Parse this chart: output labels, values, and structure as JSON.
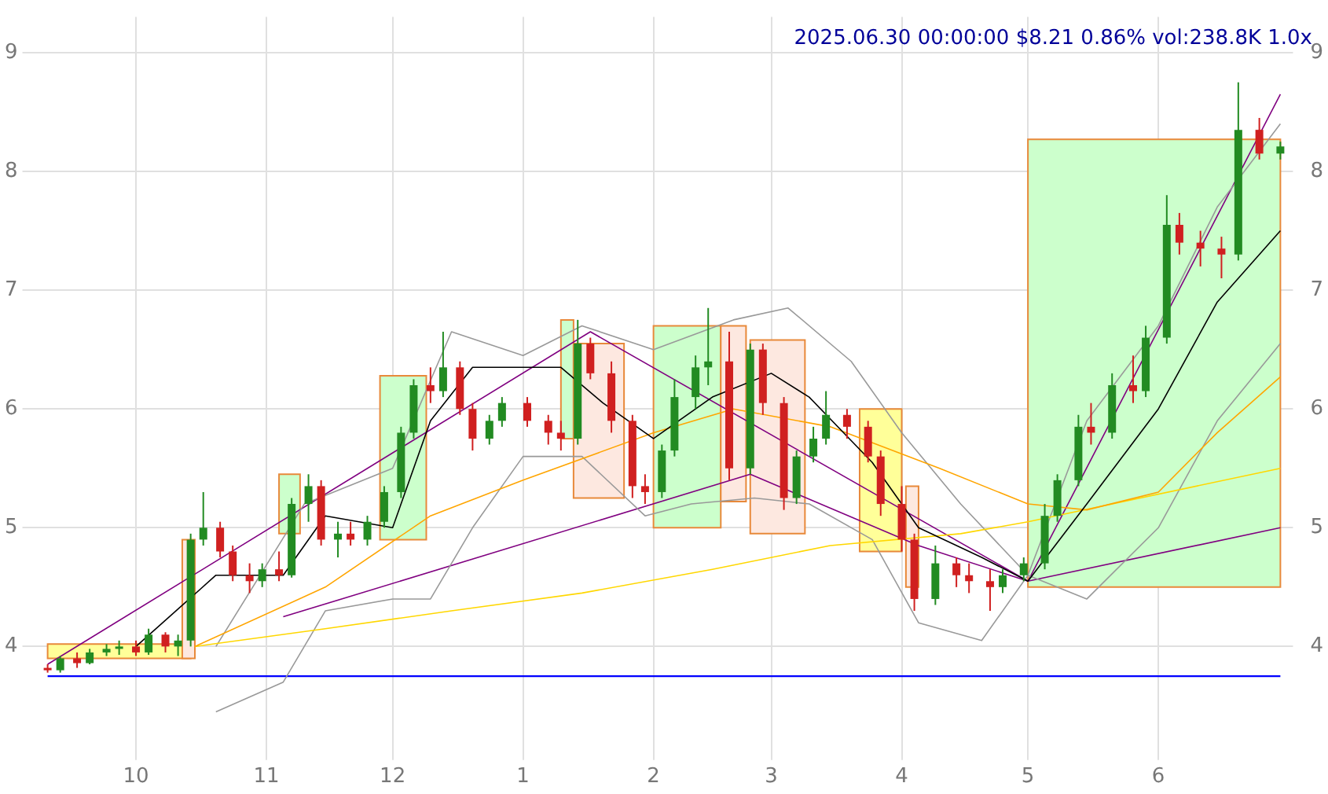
{
  "chart_data": {
    "type": "candlestick",
    "title": "2025.06.30 00:00:00 $8.21 0.86% vol:238.8K 1.0x",
    "x": [
      "2024-09-10",
      "2024-09-13",
      "2024-09-17",
      "2024-09-20",
      "2024-09-24",
      "2024-09-27",
      "2024-10-01",
      "2024-10-04",
      "2024-10-08",
      "2024-10-11",
      "2024-10-14",
      "2024-10-17",
      "2024-10-21",
      "2024-10-24",
      "2024-10-28",
      "2024-10-31",
      "2024-11-04",
      "2024-11-07",
      "2024-11-11",
      "2024-11-14",
      "2024-11-18",
      "2024-11-21",
      "2024-11-25",
      "2024-11-29",
      "2024-12-03",
      "2024-12-06",
      "2024-12-10",
      "2024-12-13",
      "2024-12-17",
      "2024-12-20",
      "2024-12-24",
      "2024-12-27",
      "2025-01-02",
      "2025-01-07",
      "2025-01-10",
      "2025-01-14",
      "2025-01-17",
      "2025-01-22",
      "2025-01-27",
      "2025-01-30",
      "2025-02-03",
      "2025-02-06",
      "2025-02-11",
      "2025-02-14",
      "2025-02-19",
      "2025-02-24",
      "2025-02-27",
      "2025-03-04",
      "2025-03-07",
      "2025-03-11",
      "2025-03-14",
      "2025-03-19",
      "2025-03-24",
      "2025-03-27",
      "2025-04-01",
      "2025-04-04",
      "2025-04-09",
      "2025-04-14",
      "2025-04-17",
      "2025-04-22",
      "2025-04-25",
      "2025-04-30",
      "2025-05-05",
      "2025-05-08",
      "2025-05-13",
      "2025-05-16",
      "2025-05-21",
      "2025-05-26",
      "2025-05-29",
      "2025-06-03",
      "2025-06-06",
      "2025-06-11",
      "2025-06-16",
      "2025-06-20",
      "2025-06-25",
      "2025-06-30"
    ],
    "ohlc": [
      [
        3.82,
        3.85,
        3.78,
        3.8
      ],
      [
        3.8,
        3.92,
        3.78,
        3.9
      ],
      [
        3.9,
        3.95,
        3.82,
        3.86
      ],
      [
        3.86,
        3.98,
        3.85,
        3.95
      ],
      [
        3.95,
        4.02,
        3.92,
        3.98
      ],
      [
        3.98,
        4.05,
        3.93,
        4.0
      ],
      [
        4.0,
        4.05,
        3.92,
        3.95
      ],
      [
        3.95,
        4.15,
        3.93,
        4.1
      ],
      [
        4.1,
        4.12,
        3.95,
        4.0
      ],
      [
        4.0,
        4.1,
        3.92,
        4.05
      ],
      [
        4.05,
        4.95,
        4.0,
        4.9
      ],
      [
        4.9,
        5.3,
        4.85,
        5.0
      ],
      [
        5.0,
        5.05,
        4.75,
        4.8
      ],
      [
        4.8,
        4.85,
        4.55,
        4.6
      ],
      [
        4.6,
        4.7,
        4.45,
        4.55
      ],
      [
        4.55,
        4.7,
        4.5,
        4.65
      ],
      [
        4.65,
        4.8,
        4.55,
        4.6
      ],
      [
        4.6,
        5.25,
        4.58,
        5.2
      ],
      [
        5.2,
        5.45,
        5.05,
        5.35
      ],
      [
        5.35,
        5.4,
        4.85,
        4.9
      ],
      [
        4.9,
        5.05,
        4.75,
        4.95
      ],
      [
        4.95,
        5.05,
        4.85,
        4.9
      ],
      [
        4.9,
        5.1,
        4.85,
        5.05
      ],
      [
        5.05,
        5.35,
        5.0,
        5.3
      ],
      [
        5.3,
        5.85,
        5.25,
        5.8
      ],
      [
        5.8,
        6.25,
        5.75,
        6.2
      ],
      [
        6.2,
        6.35,
        6.05,
        6.15
      ],
      [
        6.15,
        6.65,
        6.1,
        6.35
      ],
      [
        6.35,
        6.4,
        5.95,
        6.0
      ],
      [
        6.0,
        6.05,
        5.65,
        5.75
      ],
      [
        5.75,
        5.95,
        5.7,
        5.9
      ],
      [
        5.9,
        6.1,
        5.85,
        6.05
      ],
      [
        6.05,
        6.1,
        5.85,
        5.9
      ],
      [
        5.9,
        5.95,
        5.7,
        5.8
      ],
      [
        5.8,
        5.9,
        5.65,
        5.75
      ],
      [
        5.75,
        6.75,
        5.7,
        6.55
      ],
      [
        6.55,
        6.6,
        6.25,
        6.3
      ],
      [
        6.3,
        6.4,
        5.8,
        5.9
      ],
      [
        5.9,
        5.95,
        5.25,
        5.35
      ],
      [
        5.35,
        5.45,
        5.2,
        5.3
      ],
      [
        5.3,
        5.7,
        5.25,
        5.65
      ],
      [
        5.65,
        6.25,
        5.6,
        6.1
      ],
      [
        6.1,
        6.45,
        6.0,
        6.35
      ],
      [
        6.35,
        6.85,
        6.2,
        6.4
      ],
      [
        6.4,
        6.65,
        5.4,
        5.5
      ],
      [
        5.5,
        6.55,
        5.45,
        6.5
      ],
      [
        6.5,
        6.55,
        5.95,
        6.05
      ],
      [
        6.05,
        6.1,
        5.15,
        5.25
      ],
      [
        5.25,
        5.65,
        5.2,
        5.6
      ],
      [
        5.6,
        5.85,
        5.55,
        5.75
      ],
      [
        5.75,
        6.15,
        5.7,
        5.95
      ],
      [
        5.95,
        6.0,
        5.75,
        5.85
      ],
      [
        5.85,
        5.9,
        5.55,
        5.6
      ],
      [
        5.6,
        5.65,
        5.1,
        5.2
      ],
      [
        5.2,
        5.35,
        4.8,
        4.9
      ],
      [
        4.9,
        4.95,
        4.3,
        4.4
      ],
      [
        4.4,
        4.85,
        4.35,
        4.7
      ],
      [
        4.7,
        4.75,
        4.5,
        4.6
      ],
      [
        4.6,
        4.7,
        4.45,
        4.55
      ],
      [
        4.55,
        4.65,
        4.3,
        4.5
      ],
      [
        4.5,
        4.65,
        4.45,
        4.6
      ],
      [
        4.6,
        4.75,
        4.55,
        4.7
      ],
      [
        4.7,
        5.2,
        4.65,
        5.1
      ],
      [
        5.1,
        5.45,
        5.05,
        5.4
      ],
      [
        5.4,
        5.95,
        5.35,
        5.85
      ],
      [
        5.85,
        6.05,
        5.7,
        5.8
      ],
      [
        5.8,
        6.3,
        5.75,
        6.2
      ],
      [
        6.2,
        6.45,
        6.05,
        6.15
      ],
      [
        6.15,
        6.7,
        6.1,
        6.6
      ],
      [
        6.6,
        7.8,
        6.55,
        7.55
      ],
      [
        7.55,
        7.65,
        7.3,
        7.4
      ],
      [
        7.4,
        7.5,
        7.2,
        7.35
      ],
      [
        7.35,
        7.45,
        7.1,
        7.3
      ],
      [
        7.3,
        8.75,
        7.25,
        8.35
      ],
      [
        8.35,
        8.45,
        8.1,
        8.15
      ],
      [
        8.15,
        8.25,
        8.1,
        8.21
      ]
    ],
    "series": [
      {
        "type": "area",
        "color": "#ffff99",
        "x": [
          "2024-09-10",
          "2024-10-14"
        ],
        "values": [
          null,
          null
        ],
        "lower": [
          3.9,
          3.9
        ],
        "upper": [
          4.02,
          4.02
        ]
      },
      {
        "type": "area",
        "color": "#fde8e0",
        "x": [
          "2024-10-12",
          "2024-10-15"
        ],
        "values": [
          null,
          null
        ],
        "lower": [
          3.9,
          3.9
        ],
        "upper": [
          4.9,
          4.9
        ]
      },
      {
        "type": "area",
        "color": "#ccffcc",
        "x": [
          "2024-11-04",
          "2024-11-09"
        ],
        "values": [
          null,
          null
        ],
        "lower": [
          4.95,
          4.95
        ],
        "upper": [
          5.45,
          5.45
        ]
      },
      {
        "type": "area",
        "color": "#ccffcc",
        "x": [
          "2024-11-28",
          "2024-12-09"
        ],
        "values": [
          null,
          null
        ],
        "lower": [
          4.9,
          4.9
        ],
        "upper": [
          6.28,
          6.28
        ]
      },
      {
        "type": "area",
        "color": "#ccffcc",
        "x": [
          "2025-01-10",
          "2025-01-13"
        ],
        "values": [
          null,
          null
        ],
        "lower": [
          5.75,
          5.75
        ],
        "upper": [
          6.75,
          6.75
        ]
      },
      {
        "type": "area",
        "color": "#fde8e0",
        "x": [
          "2025-01-13",
          "2025-01-25"
        ],
        "values": [
          null,
          null
        ],
        "lower": [
          5.25,
          5.25
        ],
        "upper": [
          6.55,
          6.55
        ]
      },
      {
        "type": "area",
        "color": "#ccffcc",
        "x": [
          "2025-02-01",
          "2025-02-17"
        ],
        "values": [
          null,
          null
        ],
        "lower": [
          5.0,
          5.0
        ],
        "upper": [
          6.7,
          6.7
        ]
      },
      {
        "type": "area",
        "color": "#fde8e0",
        "x": [
          "2025-02-17",
          "2025-02-23"
        ],
        "values": [
          null,
          null
        ],
        "lower": [
          5.22,
          5.22
        ],
        "upper": [
          6.7,
          6.7
        ]
      },
      {
        "type": "area",
        "color": "#fde8e0",
        "x": [
          "2025-02-24",
          "2025-03-09"
        ],
        "values": [
          null,
          null
        ],
        "lower": [
          4.95,
          4.95
        ],
        "upper": [
          6.58,
          6.58
        ]
      },
      {
        "type": "area",
        "color": "#ffff99",
        "x": [
          "2025-03-22",
          "2025-04-01"
        ],
        "values": [
          null,
          null
        ],
        "lower": [
          4.8,
          4.8
        ],
        "upper": [
          6.0,
          6.0
        ]
      },
      {
        "type": "area",
        "color": "#fde8e0",
        "x": [
          "2025-04-02",
          "2025-04-05"
        ],
        "values": [
          null,
          null
        ],
        "lower": [
          4.5,
          4.5
        ],
        "upper": [
          5.35,
          5.35
        ]
      },
      {
        "type": "area",
        "color": "#ccffcc",
        "x": [
          "2025-05-01",
          "2025-06-30"
        ],
        "values": [
          null,
          null
        ],
        "lower": [
          4.5,
          4.5
        ],
        "upper": [
          8.27,
          8.27
        ]
      },
      {
        "type": "line",
        "color": "#000000",
        "x": [
          "2024-10-01",
          "2024-10-20",
          "2024-11-05",
          "2024-11-15",
          "2024-12-01",
          "2024-12-10",
          "2024-12-20",
          "2025-01-10",
          "2025-01-20",
          "2025-02-01",
          "2025-02-15",
          "2025-03-01",
          "2025-03-10",
          "2025-03-25",
          "2025-04-05",
          "2025-04-20",
          "2025-05-01",
          "2025-05-15",
          "2025-06-01",
          "2025-06-15",
          "2025-06-30"
        ],
        "values": [
          4.0,
          4.6,
          4.6,
          5.1,
          5.0,
          5.9,
          6.35,
          6.35,
          6.05,
          5.75,
          6.1,
          6.3,
          6.1,
          5.55,
          5.0,
          4.75,
          4.55,
          5.2,
          6.0,
          6.9,
          7.5
        ]
      },
      {
        "type": "line",
        "color": "#ffa500",
        "x": [
          "2024-10-15",
          "2024-11-15",
          "2024-12-10",
          "2025-01-01",
          "2025-02-01",
          "2025-02-20",
          "2025-03-15",
          "2025-04-10",
          "2025-05-01",
          "2025-05-15",
          "2025-06-01",
          "2025-06-15",
          "2025-06-30"
        ],
        "values": [
          4.0,
          4.5,
          5.1,
          5.4,
          5.8,
          6.0,
          5.85,
          5.5,
          5.2,
          5.15,
          5.3,
          5.8,
          6.27
        ]
      },
      {
        "type": "line",
        "color": "#ffd700",
        "x": [
          "2024-10-15",
          "2024-11-15",
          "2024-12-15",
          "2025-01-15",
          "2025-02-15",
          "2025-03-15",
          "2025-04-15",
          "2025-05-01",
          "2025-06-30"
        ],
        "values": [
          4.0,
          4.15,
          4.3,
          4.45,
          4.65,
          4.85,
          4.95,
          5.05,
          5.5
        ]
      },
      {
        "type": "line",
        "color": "#999999",
        "x": [
          "2024-10-20",
          "2024-11-10",
          "2024-12-01",
          "2024-12-15",
          "2025-01-01",
          "2025-01-15",
          "2025-02-01",
          "2025-02-20",
          "2025-03-05",
          "2025-03-20",
          "2025-04-01",
          "2025-04-15",
          "2025-05-01",
          "2025-05-15",
          "2025-06-01",
          "2025-06-15",
          "2025-06-30"
        ],
        "values": [
          4.0,
          5.2,
          5.5,
          6.65,
          6.45,
          6.7,
          6.5,
          6.75,
          6.85,
          6.4,
          5.8,
          5.2,
          4.6,
          5.9,
          6.7,
          7.7,
          8.4
        ]
      },
      {
        "type": "line",
        "color": "#999999",
        "x": [
          "2024-10-20",
          "2024-11-05",
          "2024-11-15",
          "2024-12-01",
          "2024-12-10",
          "2024-12-20",
          "2025-01-01",
          "2025-01-15",
          "2025-01-30",
          "2025-02-10",
          "2025-02-25",
          "2025-03-10",
          "2025-03-25",
          "2025-04-05",
          "2025-04-20",
          "2025-05-01",
          "2025-05-15",
          "2025-06-01",
          "2025-06-15",
          "2025-06-30"
        ],
        "values": [
          3.45,
          3.7,
          4.3,
          4.4,
          4.4,
          5.0,
          5.6,
          5.6,
          5.1,
          5.2,
          5.25,
          5.2,
          4.9,
          4.2,
          4.05,
          4.6,
          4.4,
          5.0,
          5.9,
          6.55
        ]
      },
      {
        "type": "line",
        "color": "#800080",
        "x": [
          "2024-09-10",
          "2025-01-17",
          "2025-05-01",
          "2025-06-30"
        ],
        "values": [
          3.85,
          6.65,
          4.55,
          8.65
        ]
      },
      {
        "type": "line",
        "color": "#800080",
        "x": [
          "2024-11-05",
          "2025-02-24",
          "2025-04-05",
          "2025-05-01",
          "2025-06-30"
        ],
        "values": [
          4.25,
          5.45,
          4.85,
          4.55,
          5.0
        ]
      }
    ],
    "ref_lines": [
      {
        "axis": "y",
        "value": 3.75,
        "color": "#0000ff"
      }
    ],
    "xlim": [
      "2024-09-07",
      "2025-07-03"
    ],
    "xticks": [
      {
        "value": "2024-10-01",
        "label": "10"
      },
      {
        "value": "2024-11-01",
        "label": "11"
      },
      {
        "value": "2024-12-01",
        "label": "12"
      },
      {
        "value": "2025-01-01",
        "label": "1"
      },
      {
        "value": "2025-02-01",
        "label": "2"
      },
      {
        "value": "2025-03-01",
        "label": "3"
      },
      {
        "value": "2025-04-01",
        "label": "4"
      },
      {
        "value": "2025-05-01",
        "label": "5"
      },
      {
        "value": "2025-06-01",
        "label": "6"
      }
    ],
    "ylim": [
      3.15,
      9.3
    ],
    "yticks": [
      4,
      5,
      6,
      7,
      8,
      9
    ],
    "y2lim": [
      3.15,
      9.3
    ],
    "y2ticks": [
      4,
      5,
      6,
      7,
      8,
      9
    ],
    "grid": true,
    "legend": false
  }
}
